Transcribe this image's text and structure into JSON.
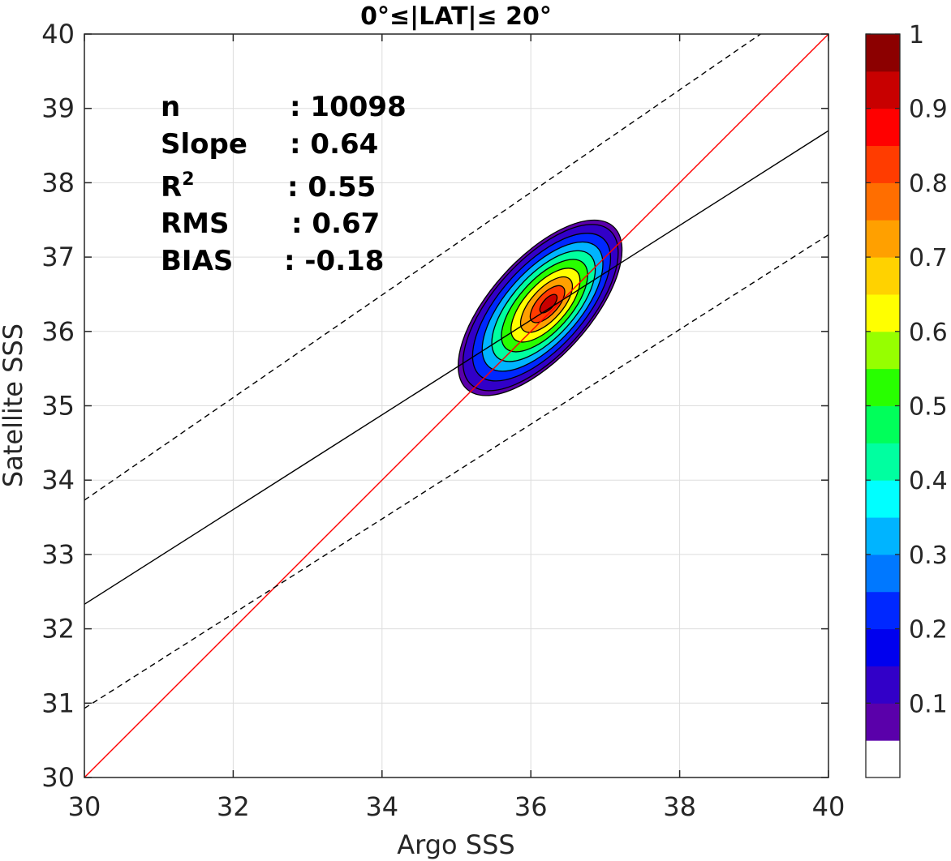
{
  "chart_data": {
    "type": "contour",
    "title": "0°≤|LAT|≤ 20°",
    "xlabel": "Argo SSS",
    "ylabel": "Satellite SSS",
    "xlim": [
      30,
      40
    ],
    "ylim": [
      30,
      40
    ],
    "xticks": [
      "30",
      "32",
      "34",
      "36",
      "38",
      "40"
    ],
    "yticks": [
      "30",
      "31",
      "32",
      "33",
      "34",
      "35",
      "36",
      "37",
      "38",
      "39",
      "40"
    ],
    "grid": true,
    "stats": [
      {
        "label": "n",
        "value": ": 10098"
      },
      {
        "label": "Slope",
        "value": ": 0.64"
      },
      {
        "label": "R",
        "sup": "2",
        "value": ": 0.55"
      },
      {
        "label": "RMS",
        "value": ": 0.67"
      },
      {
        "label": "BIAS",
        "value": ": -0.18"
      }
    ],
    "lines": [
      {
        "kind": "one-to-one",
        "color": "#ff0000",
        "style": "solid",
        "points": [
          [
            30,
            30
          ],
          [
            40,
            40
          ]
        ]
      },
      {
        "kind": "regression",
        "color": "#000000",
        "style": "solid",
        "points": [
          [
            30,
            32.33
          ],
          [
            40,
            38.7
          ]
        ]
      },
      {
        "kind": "upper-bound",
        "color": "#000000",
        "style": "dashed",
        "points": [
          [
            30,
            33.73
          ],
          [
            40,
            40.63
          ]
        ]
      },
      {
        "kind": "lower-bound",
        "color": "#000000",
        "style": "dashed",
        "points": [
          [
            30,
            30.93
          ],
          [
            40,
            37.3
          ]
        ]
      }
    ],
    "density_peak": {
      "x": 36.25,
      "y": 36.38
    },
    "contour_levels": [
      0.05,
      0.1,
      0.2,
      0.3,
      0.4,
      0.5,
      0.6,
      0.7,
      0.8,
      0.9
    ],
    "colorbar": {
      "range": [
        0,
        1
      ],
      "ticks": [
        "0.1",
        "0.2",
        "0.3",
        "0.4",
        "0.5",
        "0.6",
        "0.7",
        "0.8",
        "0.9",
        "1"
      ],
      "colors": [
        "#ffffff",
        "#5a00aa",
        "#3200c8",
        "#0000ee",
        "#0028ff",
        "#0078ff",
        "#00b4ff",
        "#00ffff",
        "#00ffa0",
        "#00ff5a",
        "#28ff00",
        "#96ff00",
        "#ffff00",
        "#ffd200",
        "#ffa000",
        "#ff6e00",
        "#ff3c00",
        "#ff0000",
        "#c80000",
        "#8c0000"
      ]
    }
  }
}
